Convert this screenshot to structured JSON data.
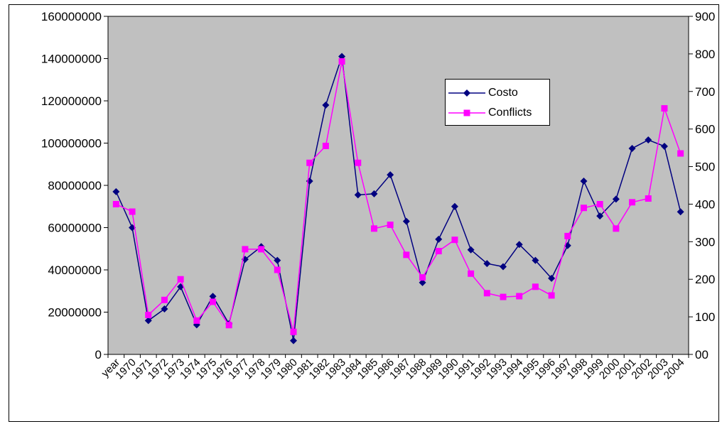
{
  "chart_data": {
    "type": "line",
    "categories": [
      "year",
      "1970",
      "1971",
      "1972",
      "1973",
      "1974",
      "1975",
      "1976",
      "1977",
      "1978",
      "1979",
      "1980",
      "1981",
      "1982",
      "1983",
      "1984",
      "1985",
      "1986",
      "1987",
      "1988",
      "1989",
      "1990",
      "1991",
      "1992",
      "1993",
      "1994",
      "1995",
      "1996",
      "1997",
      "1998",
      "1999",
      "2000",
      "2001",
      "2002",
      "2003",
      "2004"
    ],
    "y_left_ticks": [
      "0",
      "20000000",
      "40000000",
      "60000000",
      "80000000",
      "100000000",
      "120000000",
      "140000000",
      "160000000"
    ],
    "y_right_ticks": [
      "00",
      "100",
      "200",
      "300",
      "400",
      "500",
      "600",
      "700",
      "800",
      "900"
    ],
    "ylim_left": [
      0,
      160000000
    ],
    "ylim_right": [
      0,
      900
    ],
    "grid": false,
    "plot_background": "#c0c0c0",
    "legend_position": "inside-upper-right",
    "series": [
      {
        "name": "Costo",
        "axis": "left",
        "color": "#000080",
        "marker": "diamond",
        "values": [
          77000000,
          60000000,
          16000000,
          21500000,
          32000000,
          14000000,
          27500000,
          14500000,
          45000000,
          51000000,
          44500000,
          6500000,
          82000000,
          118000000,
          141000000,
          75500000,
          76000000,
          85000000,
          63000000,
          34000000,
          54500000,
          70000000,
          49500000,
          43000000,
          41500000,
          52000000,
          44500000,
          36000000,
          51500000,
          82000000,
          65500000,
          73500000,
          97500000,
          101500000,
          98500000,
          67500000
        ]
      },
      {
        "name": "Conflicts",
        "axis": "right",
        "color": "#ff00ff",
        "marker": "square",
        "values": [
          400,
          380,
          105,
          145,
          200,
          90,
          140,
          78,
          280,
          280,
          225,
          60,
          510,
          555,
          780,
          510,
          335,
          345,
          265,
          205,
          275,
          305,
          215,
          163,
          153,
          155,
          180,
          157,
          315,
          390,
          400,
          335,
          405,
          415,
          655,
          535
        ]
      }
    ]
  }
}
